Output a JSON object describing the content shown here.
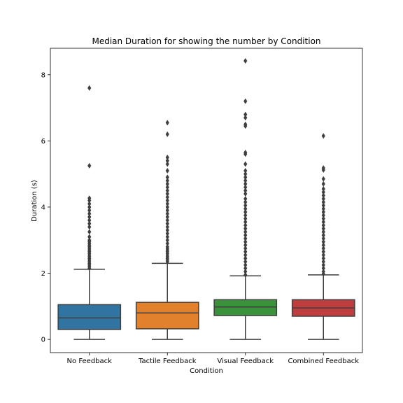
{
  "chart_data": {
    "type": "box",
    "title": "Median Duration for showing the number by Condition",
    "xlabel": "Condition",
    "ylabel": "Duration (s)",
    "ylim": [
      -0.4,
      8.8
    ],
    "yticks": [
      0,
      2,
      4,
      6,
      8
    ],
    "grid": false,
    "categories": [
      "No Feedback",
      "Tactile Feedback",
      "Visual Feedback",
      "Combined Feedback"
    ],
    "colors": [
      "#3274a1",
      "#e1812c",
      "#3a923a",
      "#c03d3e"
    ],
    "boxes": [
      {
        "name": "No Feedback",
        "whisker_low": 0.0,
        "q1": 0.3,
        "median": 0.65,
        "q3": 1.05,
        "whisker_high": 2.12,
        "outliers": [
          2.15,
          2.2,
          2.25,
          2.3,
          2.35,
          2.4,
          2.45,
          2.5,
          2.55,
          2.6,
          2.65,
          2.7,
          2.75,
          2.8,
          2.85,
          2.9,
          2.95,
          3.0,
          3.1,
          3.25,
          3.4,
          3.5,
          3.6,
          3.7,
          3.8,
          3.9,
          4.0,
          4.1,
          4.2,
          4.27,
          5.25,
          7.6
        ]
      },
      {
        "name": "Tactile Feedback",
        "whisker_low": 0.0,
        "q1": 0.32,
        "median": 0.8,
        "q3": 1.12,
        "whisker_high": 2.3,
        "outliers": [
          2.35,
          2.4,
          2.45,
          2.5,
          2.55,
          2.6,
          2.65,
          2.7,
          2.75,
          2.8,
          2.9,
          3.0,
          3.1,
          3.2,
          3.3,
          3.4,
          3.5,
          3.6,
          3.7,
          3.8,
          3.9,
          4.0,
          4.1,
          4.2,
          4.3,
          4.4,
          4.5,
          4.6,
          4.7,
          4.8,
          4.9,
          5.1,
          5.3,
          5.4,
          5.5,
          6.2,
          6.55
        ]
      },
      {
        "name": "Visual Feedback",
        "whisker_low": 0.0,
        "q1": 0.72,
        "median": 0.98,
        "q3": 1.2,
        "whisker_high": 1.92,
        "outliers": [
          1.95,
          2.05,
          2.15,
          2.25,
          2.35,
          2.45,
          2.55,
          2.65,
          2.75,
          2.85,
          2.95,
          3.05,
          3.15,
          3.25,
          3.35,
          3.45,
          3.55,
          3.65,
          3.75,
          3.85,
          3.95,
          4.05,
          4.15,
          4.25,
          4.4,
          4.5,
          4.6,
          4.7,
          4.8,
          4.9,
          5.0,
          5.1,
          5.3,
          5.6,
          5.65,
          6.45,
          6.5,
          6.7,
          6.8,
          7.2,
          8.42
        ]
      },
      {
        "name": "Combined Feedback",
        "whisker_low": 0.0,
        "q1": 0.7,
        "median": 0.95,
        "q3": 1.2,
        "whisker_high": 1.95,
        "outliers": [
          1.98,
          2.05,
          2.15,
          2.25,
          2.35,
          2.45,
          2.55,
          2.65,
          2.75,
          2.85,
          2.95,
          3.05,
          3.15,
          3.25,
          3.35,
          3.45,
          3.55,
          3.65,
          3.75,
          3.85,
          3.95,
          4.05,
          4.15,
          4.25,
          4.35,
          4.45,
          4.55,
          4.7,
          4.85,
          5.12,
          5.18,
          6.15
        ]
      }
    ]
  }
}
